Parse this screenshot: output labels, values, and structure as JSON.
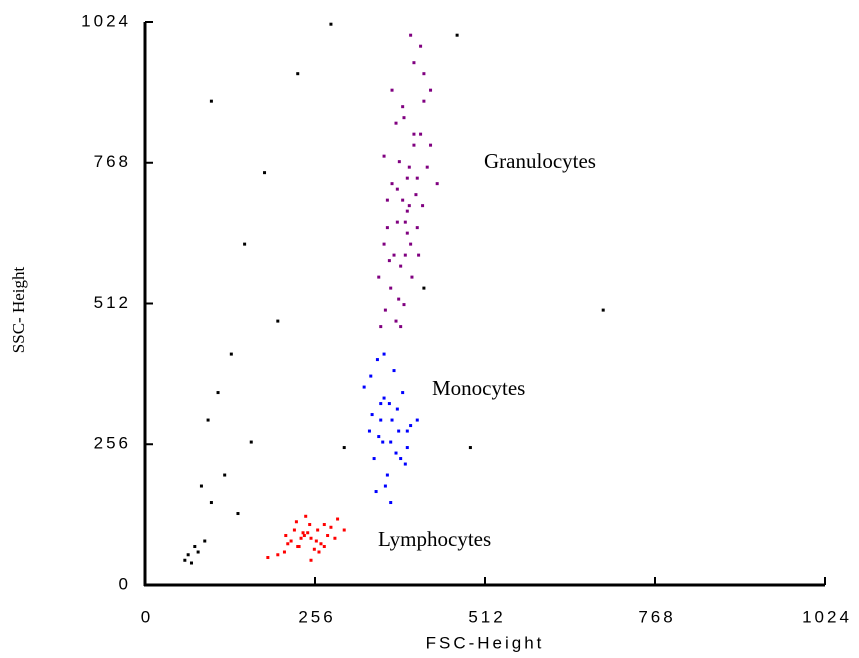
{
  "chart_data": {
    "type": "scatter",
    "x_label": "FSC-Height",
    "y_label": "SSC- Height",
    "xlim": [
      0,
      1024
    ],
    "ylim": [
      0,
      1024
    ],
    "xticks": [
      0,
      256,
      512,
      768,
      1024
    ],
    "yticks": [
      0,
      256,
      512,
      768,
      1024
    ],
    "grid": false,
    "series": [
      {
        "name": "Granulocytes",
        "color": "#800080",
        "x": [
          372,
          390,
          405,
          360,
          415,
          380,
          398,
          420,
          365,
          388,
          410,
          395,
          375,
          430,
          352,
          400,
          385,
          418,
          370,
          392,
          408,
          425,
          362,
          382,
          402,
          378,
          395,
          412,
          368,
          440,
          355,
          390,
          405,
          383,
          372,
          398,
          415,
          388,
          400,
          378,
          420,
          365,
          410,
          392,
          385,
          405,
          395,
          380,
          430,
          360
        ],
        "y": [
          900,
          850,
          950,
          780,
          820,
          720,
          760,
          880,
          650,
          700,
          740,
          680,
          600,
          800,
          560,
          620,
          580,
          690,
          540,
          660,
          710,
          760,
          500,
          520,
          560,
          480,
          640,
          600,
          590,
          730,
          470,
          510,
          820,
          770,
          730,
          690,
          980,
          870,
          1000,
          840,
          930,
          700,
          650,
          600,
          470,
          800,
          740,
          660,
          900,
          620
        ]
      },
      {
        "name": "Monocytes",
        "color": "#0000ff",
        "x": [
          340,
          355,
          370,
          360,
          345,
          380,
          395,
          350,
          365,
          372,
          388,
          358,
          342,
          378,
          400,
          330,
          362,
          375,
          385,
          352,
          368,
          392,
          410,
          348,
          382,
          360,
          370,
          395,
          338,
          355
        ],
        "y": [
          380,
          300,
          260,
          340,
          230,
          320,
          280,
          410,
          200,
          300,
          350,
          260,
          310,
          240,
          290,
          360,
          180,
          390,
          230,
          270,
          330,
          220,
          300,
          170,
          280,
          420,
          150,
          250,
          280,
          330
        ]
      },
      {
        "name": "Lymphocytes",
        "color": "#ff0000",
        "x": [
          220,
          240,
          260,
          230,
          250,
          270,
          210,
          245,
          265,
          280,
          225,
          255,
          235,
          290,
          200,
          275,
          215,
          248,
          262,
          238,
          300,
          185,
          228,
          258,
          270,
          242,
          212,
          286,
          250,
          232
        ],
        "y": [
          80,
          90,
          100,
          70,
          85,
          110,
          60,
          95,
          75,
          105,
          100,
          65,
          85,
          120,
          55,
          90,
          75,
          110,
          60,
          95,
          100,
          50,
          115,
          80,
          70,
          125,
          90,
          85,
          45,
          70
        ]
      },
      {
        "color": "#000000",
        "x": [
          70,
          65,
          80,
          75,
          90,
          100,
          85,
          120,
          140,
          95,
          160,
          110,
          130,
          200,
          420,
          490,
          690,
          300,
          180,
          60,
          230,
          280,
          150,
          100,
          470
        ],
        "y": [
          40,
          55,
          60,
          70,
          80,
          150,
          180,
          200,
          130,
          300,
          260,
          350,
          420,
          480,
          540,
          250,
          500,
          250,
          750,
          45,
          930,
          1020,
          620,
          880,
          1000
        ]
      }
    ]
  }
}
